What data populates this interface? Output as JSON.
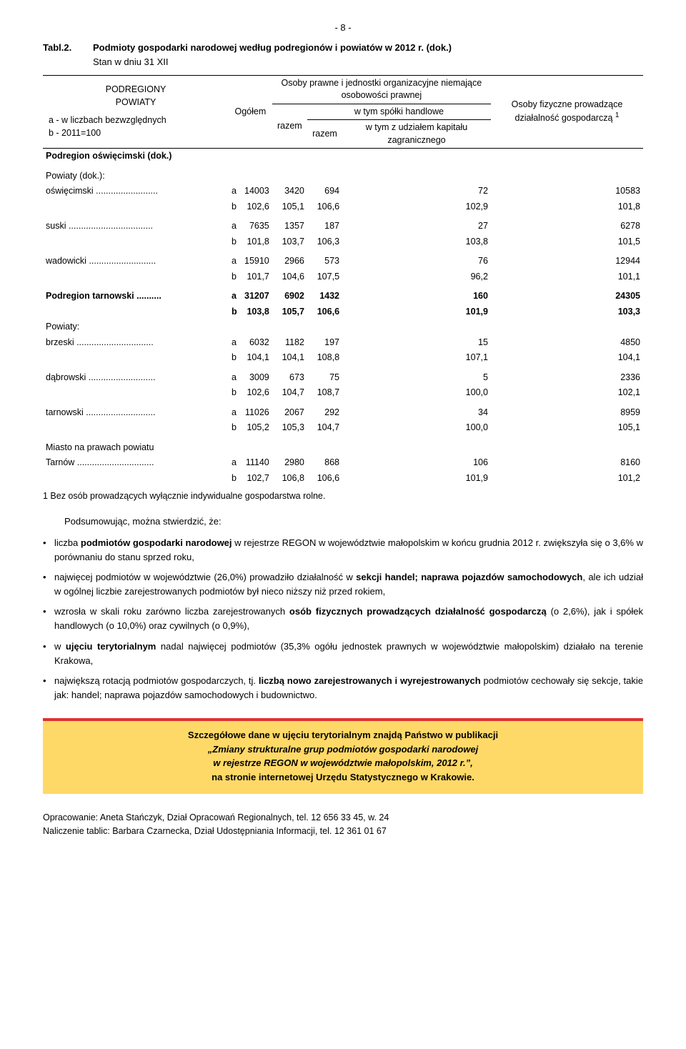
{
  "page_number": "- 8 -",
  "table_label": "Tabl.2.",
  "table_title": "Podmioty gospodarki narodowej według podregionów i powiatów w 2012 r. (dok.)",
  "table_subtitle": "Stan w dniu 31 XII",
  "headers": {
    "col1_a": "PODREGIONY",
    "col1_b": "POWIATY",
    "col1_c": "a - w liczbach bezwzględnych",
    "col1_d": "b - 2011=100",
    "ogolem": "Ogółem",
    "osoby_prawne": "Osoby prawne i jednostki organizacyjne niemające osobowości prawnej",
    "razem": "razem",
    "spolki": "w tym spółki handlowe",
    "wtym": "w tym z udziałem kapitału zagranicznego",
    "osoby_col": "Osoby fizyczne prowadzące działalność gospodarczą",
    "sup": "1"
  },
  "section1": "Podregion oświęcimski (dok.)",
  "section1_sub": "Powiaty (dok.):",
  "rows": [
    {
      "label": "oświęcimski .........................",
      "a": [
        "14003",
        "3420",
        "694",
        "72",
        "10583"
      ],
      "b": [
        "102,6",
        "105,1",
        "106,6",
        "102,9",
        "101,8"
      ]
    },
    {
      "label": "suski ..................................",
      "a": [
        "7635",
        "1357",
        "187",
        "27",
        "6278"
      ],
      "b": [
        "101,8",
        "103,7",
        "106,3",
        "103,8",
        "101,5"
      ]
    },
    {
      "label": "wadowicki ...........................",
      "a": [
        "15910",
        "2966",
        "573",
        "76",
        "12944"
      ],
      "b": [
        "101,7",
        "104,6",
        "107,5",
        "96,2",
        "101,1"
      ]
    }
  ],
  "bold_row": {
    "label": "Podregion tarnowski ..........",
    "a": [
      "31207",
      "6902",
      "1432",
      "160",
      "24305"
    ],
    "b": [
      "103,8",
      "105,7",
      "106,6",
      "101,9",
      "103,3"
    ]
  },
  "section2_sub": "Powiaty:",
  "rows2": [
    {
      "label": "brzeski ...............................",
      "a": [
        "6032",
        "1182",
        "197",
        "15",
        "4850"
      ],
      "b": [
        "104,1",
        "104,1",
        "108,8",
        "107,1",
        "104,1"
      ]
    },
    {
      "label": "dąbrowski ...........................",
      "a": [
        "3009",
        "673",
        "75",
        "5",
        "2336"
      ],
      "b": [
        "102,6",
        "104,7",
        "108,7",
        "100,0",
        "102,1"
      ]
    },
    {
      "label": "tarnowski ............................",
      "a": [
        "11026",
        "2067",
        "292",
        "34",
        "8959"
      ],
      "b": [
        "105,2",
        "105,3",
        "104,7",
        "100,0",
        "105,1"
      ]
    }
  ],
  "miasto_label": "Miasto na prawach powiatu",
  "tarnow_row": {
    "label": "Tarnów ...............................",
    "a": [
      "11140",
      "2980",
      "868",
      "106",
      "8160"
    ],
    "b": [
      "102,7",
      "106,8",
      "106,6",
      "101,9",
      "101,2"
    ]
  },
  "footnote": "1 Bez osób prowadzących wyłącznie indywidualne gospodarstwa rolne.",
  "para_intro": "Podsumowując, można stwierdzić, że:",
  "bullets": [
    "liczba <b>podmiotów gospodarki narodowej</b> w rejestrze REGON w województwie małopolskim w końcu grudnia 2012 r. zwiększyła się o 3,6% w porównaniu do stanu sprzed roku,",
    "najwięcej podmiotów w województwie (26,0%) prowadziło działalność w <b>sekcji handel; naprawa pojazdów samochodowych</b>, ale ich udział w ogólnej liczbie zarejestrowanych podmiotów był nieco niższy niż przed rokiem,",
    "wzrosła w skali roku zarówno liczba zarejestrowanych <b>osób fizycznych prowadzących działalność gospodarczą</b> (o 2,6%), jak i spółek handlowych (o 10,0%) oraz cywilnych (o 0,9%),",
    "w <b>ujęciu terytorialnym</b> nadal najwięcej podmiotów (35,3% ogółu jednostek prawnych w województwie małopolskim) działało na terenie Krakowa,",
    "największą rotacją podmiotów gospodarczych, tj. <b>liczbą nowo zarejestrowanych i wyrejestrowanych</b> podmiotów cechowały się sekcje, takie jak: handel; naprawa pojazdów samochodowych i budownictwo."
  ],
  "highlight": {
    "l1": "Szczegółowe dane w ujęciu terytorialnym znajdą Państwo w publikacji",
    "l2": "„Zmiany strukturalne grup podmiotów gospodarki narodowej",
    "l3": "w rejestrze REGON w województwie małopolskim, 2012 r.”,",
    "l4": "na stronie internetowej Urzędu Statystycznego w Krakowie."
  },
  "footer": {
    "l1": "Opracowanie: Aneta Stańczyk, Dział Opracowań Regionalnych, tel. 12 656 33 45, w. 24",
    "l2": "Naliczenie tablic: Barbara Czarnecka, Dział Udostępniania Informacji, tel. 12 361 01 67"
  },
  "colors": {
    "highlight_bg": "#ffd968",
    "highlight_border": "#e03030",
    "text": "#000000",
    "bg": "#ffffff"
  }
}
